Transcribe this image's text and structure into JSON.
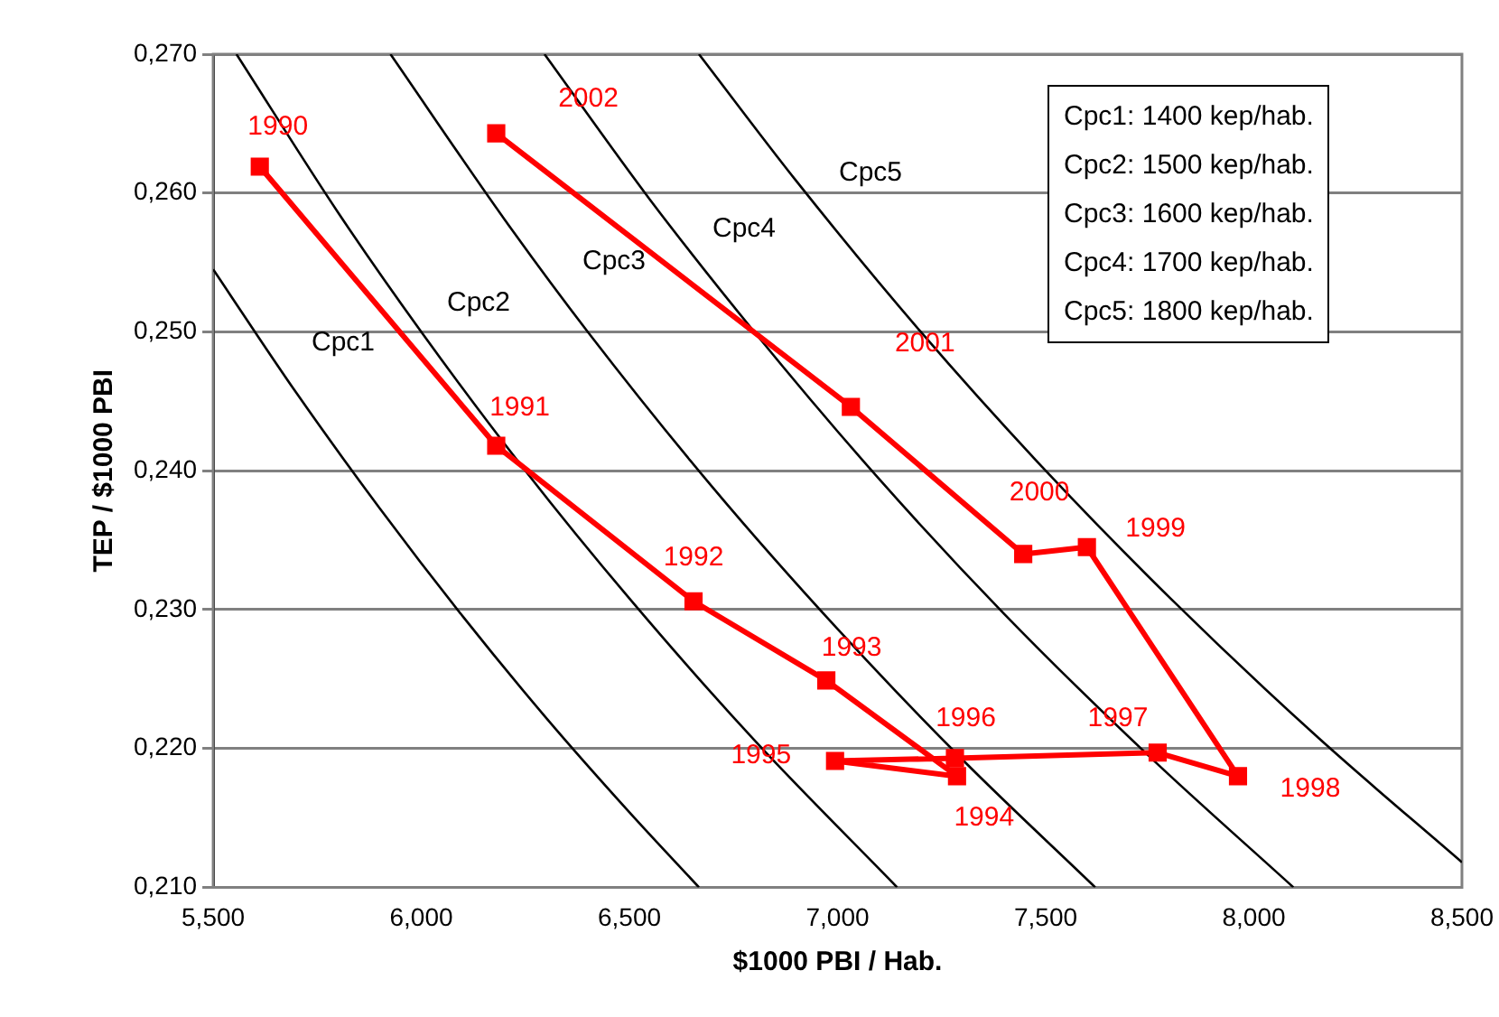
{
  "chart_data": {
    "type": "line",
    "xlabel": "$1000 PBI / Hab.",
    "ylabel": "TEP / $1000 PBI",
    "xlim": [
      5.5,
      8.5
    ],
    "xticks": [
      {
        "value": 5.5,
        "label": "5,500"
      },
      {
        "value": 6,
        "label": "6,000"
      },
      {
        "value": 6.5,
        "label": "6,500"
      },
      {
        "value": 7,
        "label": "7,000"
      },
      {
        "value": 7.5,
        "label": "7,500"
      },
      {
        "value": 8,
        "label": "8,000"
      },
      {
        "value": 8.5,
        "label": "8,500"
      }
    ],
    "ylim": [
      0.21,
      0.27
    ],
    "yticks": [
      {
        "value": 0.21,
        "label": "0,210"
      },
      {
        "value": 0.22,
        "label": "0,220"
      },
      {
        "value": 0.23,
        "label": "0,230"
      },
      {
        "value": 0.24,
        "label": "0,240"
      },
      {
        "value": 0.25,
        "label": "0,250"
      },
      {
        "value": 0.26,
        "label": "0,260"
      },
      {
        "value": 0.27,
        "label": "0,270"
      }
    ],
    "grid": "y",
    "legend": false,
    "series": [
      {
        "type": "line",
        "color": "#ff0000",
        "marker": "square",
        "x": [
          5.612,
          6.18,
          6.654,
          6.973,
          7.287,
          6.994,
          7.282,
          7.769,
          7.962,
          7.599,
          7.446,
          7.032,
          6.18
        ],
        "values": [
          0.2619,
          0.2418,
          0.2306,
          0.2249,
          0.218,
          0.2191,
          0.2193,
          0.2197,
          0.218,
          0.2345,
          0.234,
          0.2446,
          0.2643
        ]
      },
      {
        "type": "line",
        "name": "Cpc1",
        "color": "#000000",
        "marker": "none",
        "x": [
          5.5,
          5.7,
          5.9,
          6.1,
          6.3,
          6.5,
          6.667
        ],
        "values": [
          0.2545,
          0.2456,
          0.2373,
          0.2295,
          0.2222,
          0.2154,
          0.21
        ]
      },
      {
        "type": "line",
        "name": "Cpc2",
        "color": "#000000",
        "marker": "none",
        "x": [
          5.556,
          5.8,
          6,
          6.25,
          6.5,
          6.8,
          7.143
        ],
        "values": [
          0.27,
          0.2586,
          0.25,
          0.24,
          0.2308,
          0.2206,
          0.21
        ]
      },
      {
        "type": "line",
        "name": "Cpc3",
        "color": "#000000",
        "marker": "none",
        "x": [
          5.926,
          6.2,
          6.4,
          6.7,
          7,
          7.3,
          7.619
        ],
        "values": [
          0.27,
          0.2581,
          0.25,
          0.2388,
          0.2286,
          0.2192,
          0.21
        ]
      },
      {
        "type": "line",
        "name": "Cpc4",
        "color": "#000000",
        "marker": "none",
        "x": [
          6.296,
          6.55,
          6.8,
          7.1,
          7.4,
          7.75,
          8.095
        ],
        "values": [
          0.27,
          0.2595,
          0.25,
          0.2394,
          0.2297,
          0.2194,
          0.21
        ]
      },
      {
        "type": "line",
        "name": "Cpc5",
        "color": "#000000",
        "marker": "none",
        "x": [
          6.667,
          6.9,
          7.2,
          7.5,
          7.8,
          8.15,
          8.5
        ],
        "values": [
          0.27,
          0.2609,
          0.25,
          0.24,
          0.2308,
          0.2209,
          0.2118
        ]
      }
    ],
    "annotations": [
      {
        "text": "1990",
        "x": 5.612,
        "y": 0.2619
      },
      {
        "text": "1991",
        "x": 6.18,
        "y": 0.2418
      },
      {
        "text": "1992",
        "x": 6.654,
        "y": 0.2306
      },
      {
        "text": "1993",
        "x": 6.973,
        "y": 0.2249
      },
      {
        "text": "1994",
        "x": 7.287,
        "y": 0.218
      },
      {
        "text": "1995",
        "x": 6.994,
        "y": 0.2191
      },
      {
        "text": "1996",
        "x": 7.282,
        "y": 0.2193
      },
      {
        "text": "1997",
        "x": 7.769,
        "y": 0.2197
      },
      {
        "text": "1998",
        "x": 7.962,
        "y": 0.218
      },
      {
        "text": "1999",
        "x": 7.599,
        "y": 0.2345
      },
      {
        "text": "2000",
        "x": 7.446,
        "y": 0.234
      },
      {
        "text": "2001",
        "x": 7.032,
        "y": 0.2446
      },
      {
        "text": "2002",
        "x": 6.18,
        "y": 0.2643
      },
      "Cpc1: 1400 kep/hab.",
      "Cpc2: 1500 kep/hab.",
      "Cpc3: 1600 kep/hab.",
      "Cpc4: 1700 kep/hab.",
      "Cpc5: 1800 kep/hab."
    ]
  }
}
